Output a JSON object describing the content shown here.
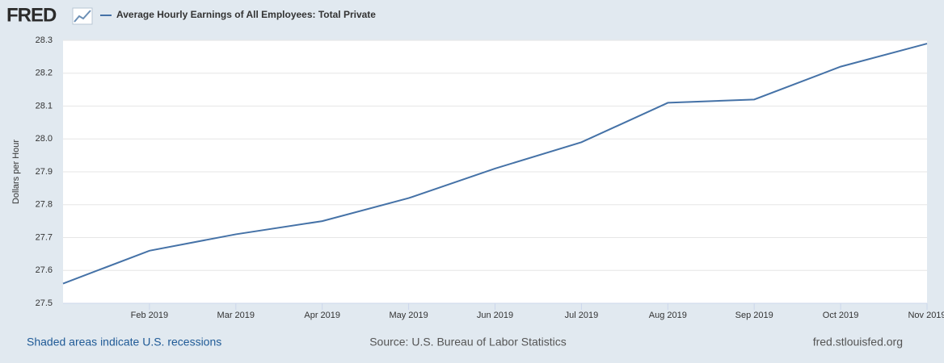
{
  "chart_data": {
    "type": "line",
    "logo": "FRED",
    "y_label": "Dollars per Hour",
    "categories": [
      null,
      "Feb 2019",
      "Mar 2019",
      "Apr 2019",
      "May 2019",
      "Jun 2019",
      "Jul 2019",
      "Aug 2019",
      "Sep 2019",
      "Oct 2019",
      "Nov 2019"
    ],
    "series": [
      {
        "name": "Average Hourly Earnings of All Employees: Total Private",
        "color": "#4572a7",
        "values": [
          27.56,
          27.66,
          27.71,
          27.75,
          27.82,
          27.91,
          27.99,
          28.11,
          28.12,
          28.22,
          28.29
        ]
      }
    ],
    "ylim": [
      27.5,
      28.3
    ],
    "yticks": [
      27.5,
      27.6,
      27.7,
      27.8,
      27.9,
      {
        "value": 28,
        "label": "28.0"
      },
      28.1,
      28.2,
      28.3
    ],
    "grid": true,
    "recession_note": "Shaded areas indicate U.S. recessions",
    "source": "Source: U.S. Bureau of Labor Statistics",
    "site": "fred.stlouisfed.org"
  }
}
